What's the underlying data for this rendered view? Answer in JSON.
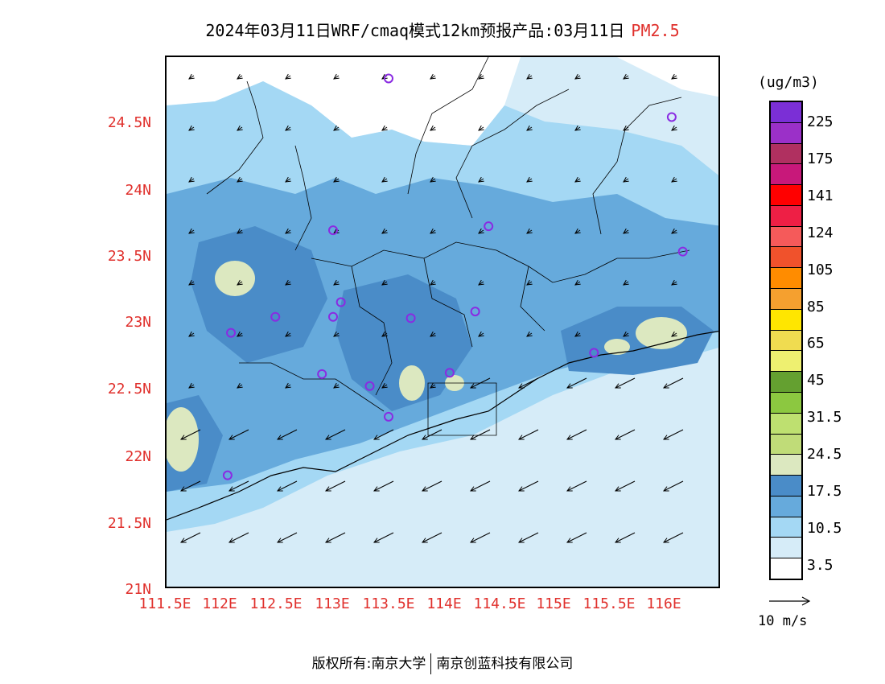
{
  "header": {
    "title": "2024年03月11日WRF/cmaq模式12km预报产品:03月11日",
    "pollutant": "PM2.5"
  },
  "axes": {
    "lat_labels": [
      "24.5N",
      "24N",
      "23.5N",
      "23N",
      "22.5N",
      "22N",
      "21.5N",
      "21N"
    ],
    "lon_labels": [
      "111.5E",
      "112E",
      "112.5E",
      "113E",
      "113.5E",
      "114E",
      "114.5E",
      "115E",
      "115.5E",
      "116E"
    ],
    "label_color": "#e0302c"
  },
  "legend": {
    "unit": "(ug/m3)",
    "colors_top_to_bottom": [
      "#7b2fd6",
      "#9b30c8",
      "#b03060",
      "#c8187a",
      "#ff0000",
      "#ee1f45",
      "#f55a5a",
      "#f0522c",
      "#ff8c00",
      "#f5a02f",
      "#ffe600",
      "#f0dc50",
      "#eef070",
      "#64a030",
      "#8cc840",
      "#bee070",
      "#c0dc78",
      "#dce8c0",
      "#4a8cc8",
      "#66aadc",
      "#a4d8f4",
      "#d6ecf8",
      "#ffffff"
    ],
    "labels": [
      "225",
      "175",
      "141",
      "124",
      "105",
      "85",
      "65",
      "45",
      "31.5",
      "24.5",
      "17.5",
      "10.5",
      "3.5"
    ],
    "wind_reference": "10 m/s"
  },
  "footer": {
    "copyright": "版权所有:南京大学",
    "company": "南京创蓝科技有限公司"
  },
  "stations": [
    {
      "lon": 113.5,
      "lat": 24.84
    },
    {
      "lon": 116.05,
      "lat": 24.55
    },
    {
      "lon": 113.0,
      "lat": 23.7
    },
    {
      "lon": 114.4,
      "lat": 23.73
    },
    {
      "lon": 116.15,
      "lat": 23.54
    },
    {
      "lon": 113.07,
      "lat": 23.16
    },
    {
      "lon": 112.48,
      "lat": 23.05
    },
    {
      "lon": 113.0,
      "lat": 23.05
    },
    {
      "lon": 113.7,
      "lat": 23.04
    },
    {
      "lon": 114.28,
      "lat": 23.09
    },
    {
      "lon": 112.08,
      "lat": 22.93
    },
    {
      "lon": 115.35,
      "lat": 22.78
    },
    {
      "lon": 112.9,
      "lat": 22.62
    },
    {
      "lon": 113.33,
      "lat": 22.53
    },
    {
      "lon": 114.05,
      "lat": 22.63
    },
    {
      "lon": 113.5,
      "lat": 22.3
    },
    {
      "lon": 112.05,
      "lat": 21.86
    }
  ]
}
